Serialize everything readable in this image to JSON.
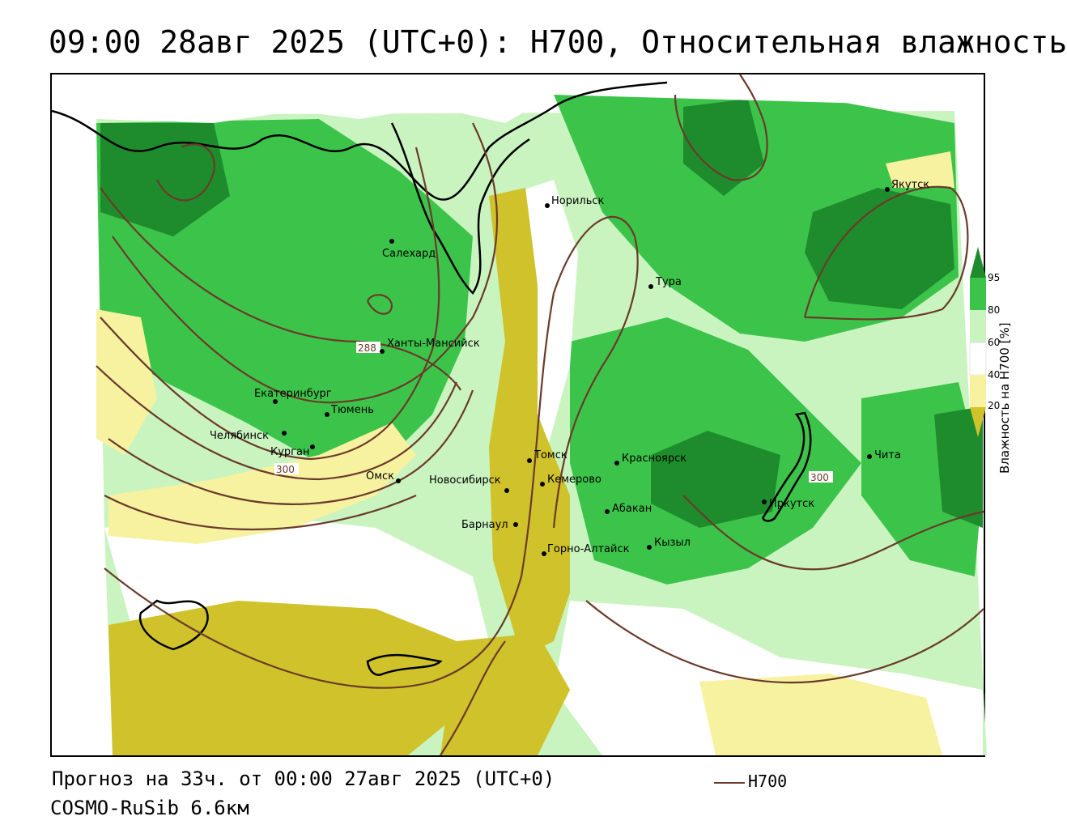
{
  "title": "09:00 28авг 2025 (UTC+0): H700, Относительная влажность",
  "footer": {
    "forecast": "Прогноз на 33ч. от 00:00 27авг 2025 (UTC+0)",
    "model": "COSMO-RuSib 6.6км",
    "line_legend": "H700"
  },
  "colorbar": {
    "title": "Влажность на H700 [%]",
    "ticks": [
      "95",
      "80",
      "60",
      "40",
      "20"
    ],
    "colors": {
      "c95": "#1e8c2c",
      "c80": "#3cc44a",
      "c60": "#c9f4c0",
      "c40": "#ffffff",
      "c20": "#f6f2a0",
      "c0": "#cfc22a"
    }
  },
  "contour_color": "#6b3a2a",
  "contour_labels": [
    "288",
    "300",
    "300"
  ],
  "cities": [
    {
      "name": "Норильск"
    },
    {
      "name": "Якутск"
    },
    {
      "name": "Салехард"
    },
    {
      "name": "Тура"
    },
    {
      "name": "Ханты-Мансийск"
    },
    {
      "name": "Екатеринбург"
    },
    {
      "name": "Тюмень"
    },
    {
      "name": "Челябинск"
    },
    {
      "name": "Курган"
    },
    {
      "name": "Омск"
    },
    {
      "name": "Новосибирск"
    },
    {
      "name": "Томск"
    },
    {
      "name": "Кемерово"
    },
    {
      "name": "Красноярск"
    },
    {
      "name": "Барнаул"
    },
    {
      "name": "Абакан"
    },
    {
      "name": "Горно-Алтайск"
    },
    {
      "name": "Кызыл"
    },
    {
      "name": "Иркутск"
    },
    {
      "name": "Чита"
    }
  ]
}
